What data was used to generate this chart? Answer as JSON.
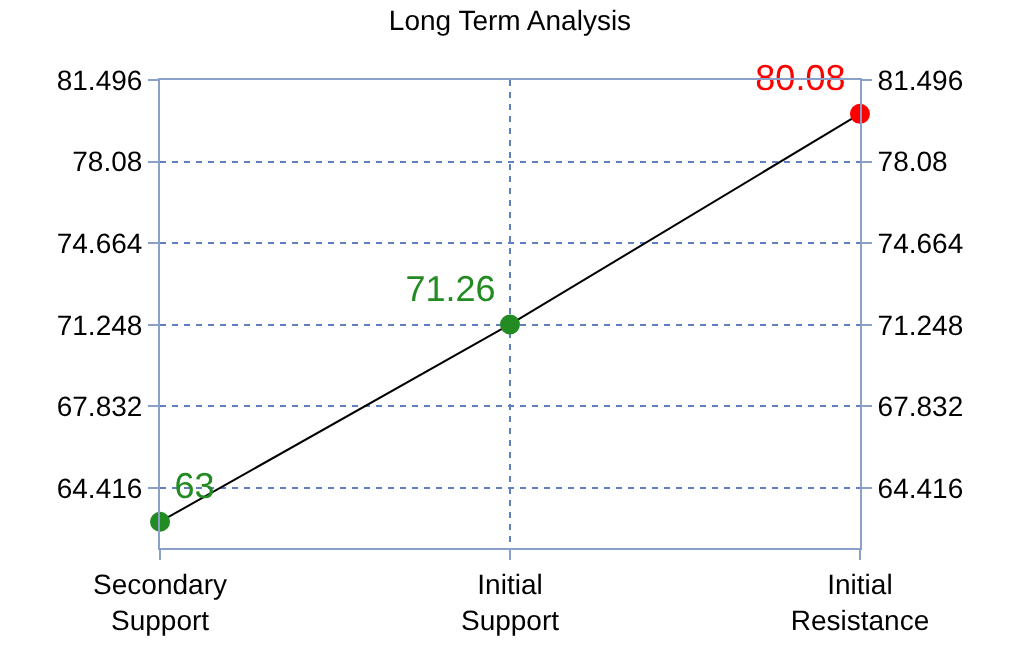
{
  "chart_data": {
    "type": "line",
    "title": "Long Term Analysis",
    "categories": [
      "Secondary\nSupport",
      "Initial\nSupport",
      "Initial\nResistance"
    ],
    "series": [
      {
        "color": "#000000",
        "values": [
          63,
          71.26,
          80.08
        ]
      }
    ],
    "colors": [
      "#228b22",
      "#228b22",
      "#ff0000"
    ],
    "data_labels": true,
    "marker": "circle",
    "line_style": "solid",
    "grid": true,
    "ylim": [
      61.9,
      81.496
    ],
    "yticks": [
      64.416,
      67.832,
      71.248,
      74.664,
      78.08,
      81.496
    ],
    "y2lim": [
      61.9,
      81.496
    ],
    "y2ticks": [
      64.416,
      67.832,
      71.248,
      74.664,
      78.08,
      81.496
    ]
  }
}
